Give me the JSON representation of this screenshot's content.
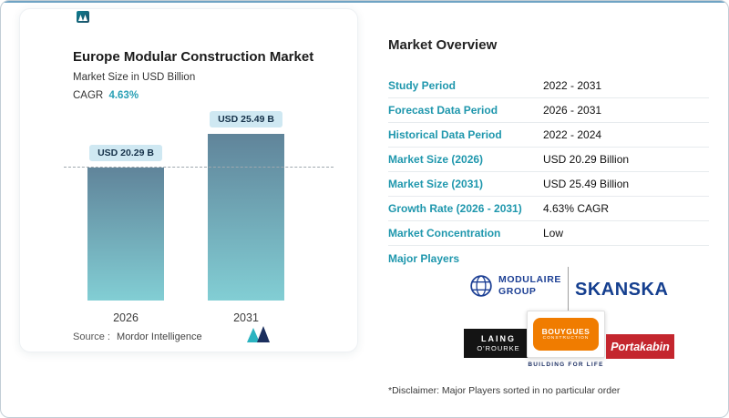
{
  "card": {
    "title": "Europe Modular Construction Market",
    "subtitle": "Market Size in USD Billion",
    "cagr_label": "CAGR",
    "cagr_value": "4.63%",
    "source_label": "Source :",
    "source_value": "Mordor Intelligence"
  },
  "chart_data": {
    "type": "bar",
    "title": "Europe Modular Construction Market",
    "ylabel": "Market Size in USD Billion",
    "categories": [
      "2026",
      "2031"
    ],
    "values": [
      20.29,
      25.49
    ],
    "value_labels": [
      "USD 20.29 B",
      "USD 25.49 B"
    ],
    "ylim": [
      0,
      30
    ],
    "reference_value": 20.29,
    "grid": false,
    "legend": "none",
    "bar_color_top": "#60849a",
    "bar_color_bottom": "#82ced4"
  },
  "overview": {
    "heading": "Market Overview",
    "rows": [
      {
        "label": "Study Period",
        "value": "2022 - 2031"
      },
      {
        "label": "Forecast Data Period",
        "value": "2026 - 2031"
      },
      {
        "label": "Historical Data Period",
        "value": "2022 - 2024"
      },
      {
        "label": "Market Size (2026)",
        "value": "USD 20.29 Billion"
      },
      {
        "label": "Market Size (2031)",
        "value": "USD 25.49 Billion"
      },
      {
        "label": "Growth Rate (2026 - 2031)",
        "value": "4.63% CAGR"
      },
      {
        "label": "Market Concentration",
        "value": "Low"
      },
      {
        "label": "Major Players",
        "value": ""
      }
    ],
    "disclaimer": "*Disclaimer: Major Players sorted in no particular order"
  },
  "players": {
    "modulaire_line1": "MODULAIRE",
    "modulaire_line2": "GROUP",
    "skanska": "SKANSKA",
    "laing_line1": "LAING",
    "laing_line2": "O'ROURKE",
    "bouygues_line1": "BOUYGUES",
    "bouygues_line2": "CONSTRUCTION",
    "building_for_life": "BUILDING FOR LIFE",
    "portakabin": "Portakabin"
  },
  "colors": {
    "accent_teal": "#1f97ad",
    "cagr_teal": "#2aa0b5",
    "navy": "#1c3f94",
    "skanska_blue": "#153f8f",
    "portakabin_red": "#c4262e",
    "bouygues_orange": "#f07c00",
    "laing_black": "#141414",
    "pill_bg": "#cfe8f2"
  }
}
